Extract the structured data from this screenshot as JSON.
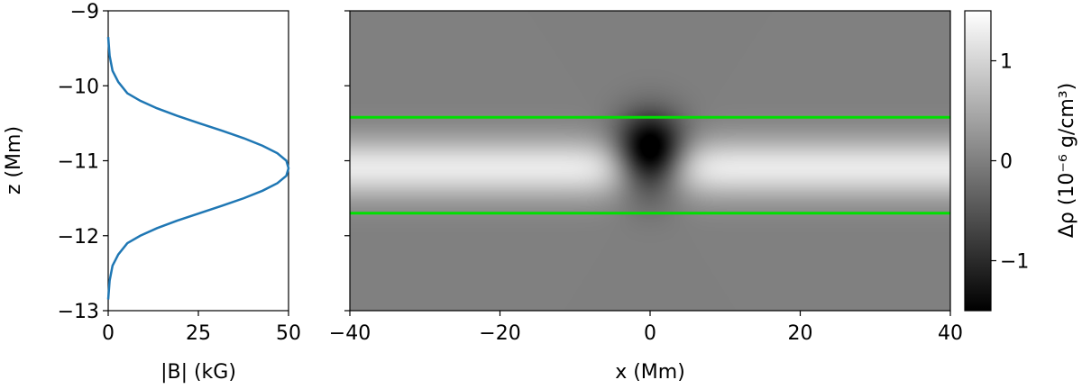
{
  "chart_data": [
    {
      "type": "line",
      "xlabel": "|B| (kG)",
      "ylabel": "z (Mm)",
      "xlim": [
        0,
        50
      ],
      "ylim": [
        -13,
        -9
      ],
      "xticks": [
        0,
        25,
        50
      ],
      "xtick_labels": [
        "0",
        "25",
        "50"
      ],
      "yticks": [
        -13,
        -12,
        -11,
        -10,
        -9
      ],
      "ytick_labels": [
        "−13",
        "−12",
        "−11",
        "−10",
        "−9"
      ],
      "grid": false,
      "series": [
        {
          "color": "#1f77b4",
          "x": [
            0,
            0.4,
            1.2,
            2.8,
            5.3,
            8.9,
            13.5,
            19.1,
            25.3,
            31.6,
            37.6,
            42.8,
            46.9,
            49.4,
            50,
            49.4,
            46.9,
            42.8,
            37.6,
            31.6,
            25.3,
            19.1,
            13.5,
            8.9,
            5.3,
            2.8,
            1.2,
            0.4,
            0
          ],
          "y": [
            -9.35,
            -9.6,
            -9.8,
            -9.95,
            -10.1,
            -10.2,
            -10.3,
            -10.4,
            -10.5,
            -10.6,
            -10.7,
            -10.8,
            -10.9,
            -11.0,
            -11.1,
            -11.2,
            -11.3,
            -11.4,
            -11.5,
            -11.6,
            -11.7,
            -11.8,
            -11.9,
            -12.0,
            -12.1,
            -12.25,
            -12.4,
            -12.6,
            -12.85
          ]
        }
      ]
    },
    {
      "type": "heatmap",
      "xlabel": "x (Mm)",
      "xlim": [
        -40,
        40
      ],
      "ylim": [
        -13,
        -9
      ],
      "xticks": [
        -40,
        -20,
        0,
        20,
        40
      ],
      "xtick_labels": [
        "−40",
        "−20",
        "0",
        "20",
        "40"
      ],
      "yticks": [
        -13,
        -12,
        -11,
        -10,
        -9
      ],
      "colormap": "gray",
      "vmin": -1.5,
      "vmax": 1.5,
      "background_value": 0.0,
      "band": {
        "center_z": -11.1,
        "sigma_z": 0.4,
        "amplitude": 1.25
      },
      "blob": {
        "x": 0,
        "z": -10.95,
        "sigma_x": 4.5,
        "sigma_z": 0.5,
        "amplitude": -2.6
      },
      "grid": false,
      "lines": [
        {
          "color": "#00e000",
          "z": -10.42
        },
        {
          "color": "#00e000",
          "z": -11.7
        }
      ],
      "colorbar": {
        "label": "Δρ (10⁻⁶ g/cm³)",
        "ticks": [
          -1,
          0,
          1
        ],
        "tick_labels": [
          "−1",
          "0",
          "1"
        ]
      }
    }
  ]
}
